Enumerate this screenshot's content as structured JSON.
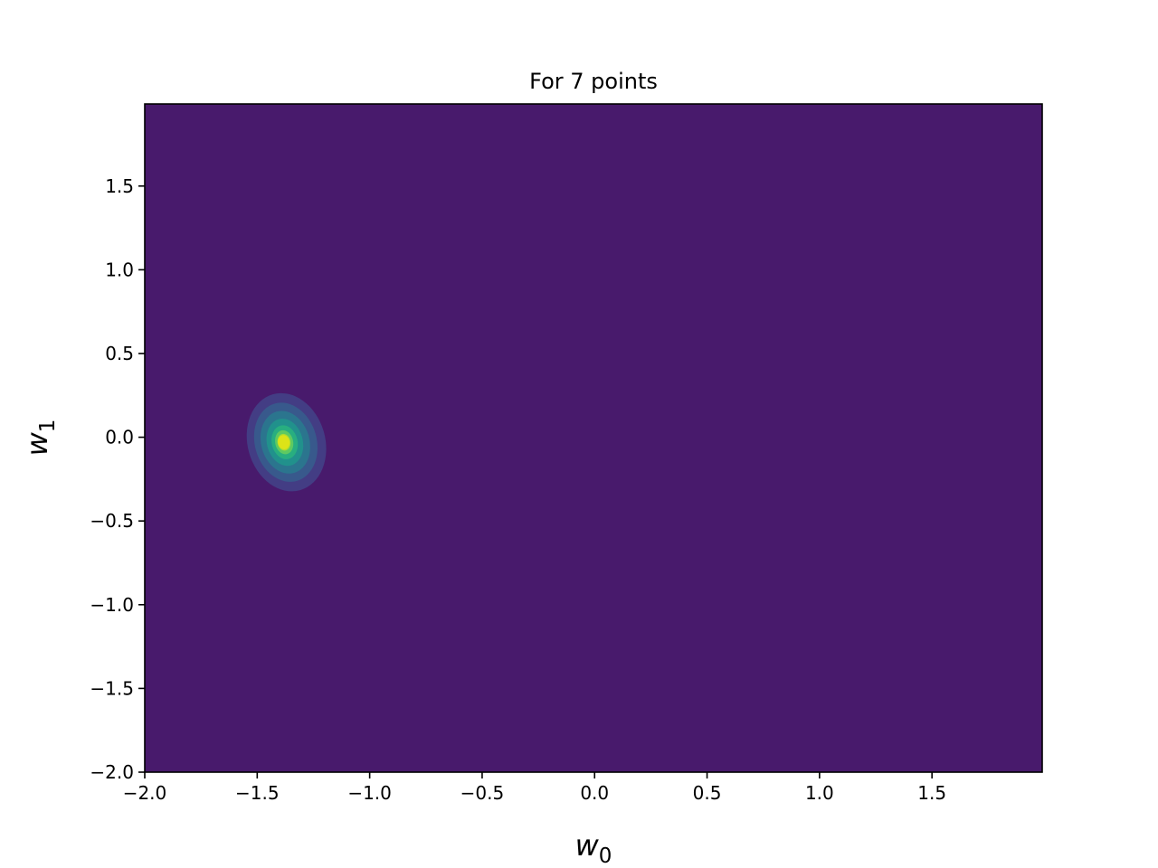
{
  "chart_data": {
    "type": "contourf",
    "title": "For 7 points",
    "xlabel": {
      "base": "w",
      "subscript": "0"
    },
    "ylabel": {
      "base": "w",
      "subscript": "1"
    },
    "xlim": [
      -2.0,
      1.99
    ],
    "ylim": [
      -2.0,
      1.99
    ],
    "xticks": [
      -2.0,
      -1.5,
      -1.0,
      -0.5,
      0.0,
      0.5,
      1.0,
      1.5
    ],
    "xtick_labels": [
      "−2.0",
      "−1.5",
      "−1.0",
      "−0.5",
      "0.0",
      "0.5",
      "1.0",
      "1.5"
    ],
    "yticks": [
      -2.0,
      -1.5,
      -1.0,
      -0.5,
      0.0,
      0.5,
      1.0,
      1.5
    ],
    "ytick_labels": [
      "−2.0",
      "−1.5",
      "−1.0",
      "−0.5",
      "0.0",
      "0.5",
      "1.0",
      "1.5"
    ],
    "grid": false,
    "background_color": "#481a6c",
    "peak": {
      "w0": -1.38,
      "w1": -0.03
    },
    "levels": [
      {
        "color": "#433d84",
        "cx": -1.37,
        "cy": -0.03,
        "rx": 0.345,
        "ry": 0.595,
        "angle_deg": -16
      },
      {
        "color": "#38598c",
        "cx": -1.373,
        "cy": -0.03,
        "rx": 0.275,
        "ry": 0.48,
        "angle_deg": -16
      },
      {
        "color": "#2b758e",
        "cx": -1.375,
        "cy": -0.03,
        "rx": 0.215,
        "ry": 0.38,
        "angle_deg": -16
      },
      {
        "color": "#21918c",
        "cx": -1.377,
        "cy": -0.03,
        "rx": 0.16,
        "ry": 0.285,
        "angle_deg": -14
      },
      {
        "color": "#28ae80",
        "cx": -1.378,
        "cy": -0.03,
        "rx": 0.115,
        "ry": 0.205,
        "angle_deg": -13
      },
      {
        "color": "#5ec962",
        "cx": -1.38,
        "cy": -0.03,
        "rx": 0.08,
        "ry": 0.145,
        "angle_deg": -12
      },
      {
        "color": "#addc30",
        "cx": -1.381,
        "cy": -0.03,
        "rx": 0.058,
        "ry": 0.1,
        "angle_deg": -10
      },
      {
        "color": "#dde318",
        "cx": -1.382,
        "cy": -0.03,
        "rx": 0.052,
        "ry": 0.085,
        "angle_deg": -10
      }
    ]
  }
}
